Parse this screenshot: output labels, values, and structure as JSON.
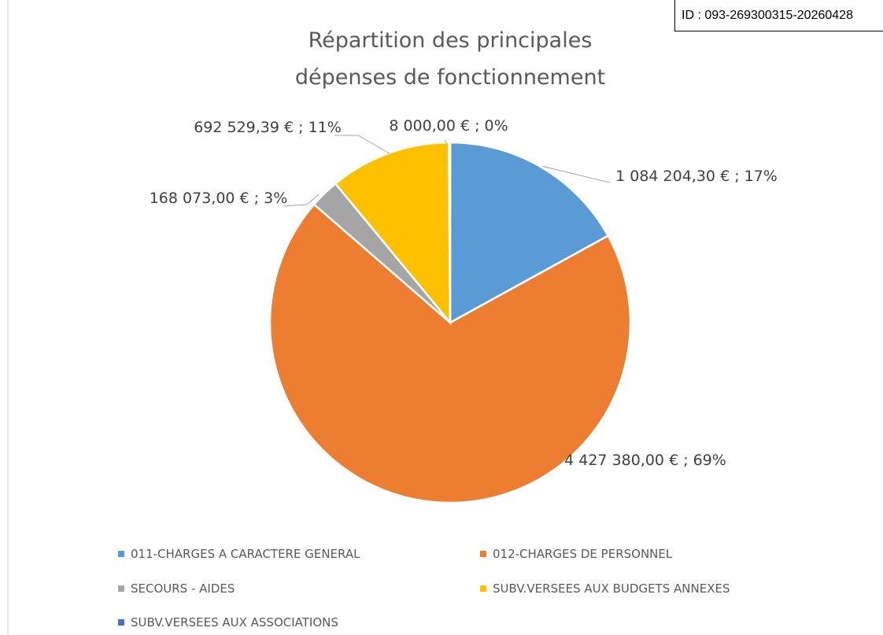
{
  "stamp": "ID : 093-269300315-20260428",
  "chart_data": {
    "type": "pie",
    "title": "Répartition des principales dépenses de fonctionnement",
    "categories": [
      "011-CHARGES A CARACTERE GENERAL",
      "012-CHARGES DE PERSONNEL",
      "SECOURS - AIDES",
      "SUBV.VERSEES AUX BUDGETS ANNEXES",
      "SUBV.VERSEES AUX ASSOCIATIONS"
    ],
    "values": [
      1084204.3,
      4427380.0,
      168073.0,
      692529.39,
      8000.0
    ],
    "value_labels": [
      "1 084 204,30 € ; 17%",
      "4 427 380,00 € ; 69%",
      "168 073,00 € ; 3%",
      "692 529,39 € ; 11%",
      "8 000,00 € ; 0%"
    ],
    "colors": [
      "#5b9bd5",
      "#ed7d31",
      "#a5a5a5",
      "#ffc000",
      "#4472c4"
    ]
  }
}
